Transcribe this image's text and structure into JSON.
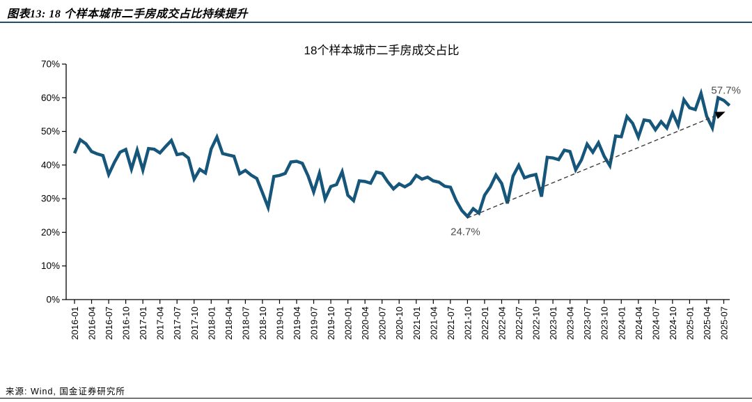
{
  "figure": {
    "title": "图表13: 18 个样本城市二手房成交占比持续提升",
    "source": "来源: Wind, 国金证券研究所",
    "caption_rule_color": "#1F4E79"
  },
  "chart_data": {
    "type": "line",
    "title": "18个样本城市二手房成交占比",
    "series_name": "二手房成交占比",
    "line_color": "#16567B",
    "trend_color": "#3A3A3A",
    "annotation_color": "#4D4D4D",
    "grid": false,
    "legend_position": "none",
    "ylim": [
      0,
      70
    ],
    "y_tick_step": 10,
    "y_ticks": [
      "70%",
      "60%",
      "50%",
      "40%",
      "30%",
      "20%",
      "10%",
      "0%"
    ],
    "x_tick_labels": [
      "2016-01",
      "2016-04",
      "2016-07",
      "2016-10",
      "2017-01",
      "2017-04",
      "2017-07",
      "2017-10",
      "2018-01",
      "2018-04",
      "2018-07",
      "2018-10",
      "2019-01",
      "2019-04",
      "2019-07",
      "2019-10",
      "2020-01",
      "2020-04",
      "2020-07",
      "2020-10",
      "2021-01",
      "2021-04",
      "2021-07",
      "2021-10",
      "2022-01",
      "2022-04",
      "2022-07",
      "2022-10",
      "2023-01",
      "2023-04",
      "2023-07",
      "2023-10",
      "2024-01",
      "2024-04",
      "2024-07",
      "2024-10",
      "2025-01",
      "2025-04",
      "2025-07"
    ],
    "x": [
      "2016-01",
      "2016-02",
      "2016-03",
      "2016-04",
      "2016-05",
      "2016-06",
      "2016-07",
      "2016-08",
      "2016-09",
      "2016-10",
      "2016-11",
      "2016-12",
      "2017-01",
      "2017-02",
      "2017-03",
      "2017-04",
      "2017-05",
      "2017-06",
      "2017-07",
      "2017-08",
      "2017-09",
      "2017-10",
      "2017-11",
      "2017-12",
      "2018-01",
      "2018-02",
      "2018-03",
      "2018-04",
      "2018-05",
      "2018-06",
      "2018-07",
      "2018-08",
      "2018-09",
      "2018-10",
      "2018-11",
      "2018-12",
      "2019-01",
      "2019-02",
      "2019-03",
      "2019-04",
      "2019-05",
      "2019-06",
      "2019-07",
      "2019-08",
      "2019-09",
      "2019-10",
      "2019-11",
      "2019-12",
      "2020-01",
      "2020-02",
      "2020-03",
      "2020-04",
      "2020-05",
      "2020-06",
      "2020-07",
      "2020-08",
      "2020-09",
      "2020-10",
      "2020-11",
      "2020-12",
      "2021-01",
      "2021-02",
      "2021-03",
      "2021-04",
      "2021-05",
      "2021-06",
      "2021-07",
      "2021-08",
      "2021-09",
      "2021-10",
      "2021-11",
      "2021-12",
      "2022-01",
      "2022-02",
      "2022-03",
      "2022-04",
      "2022-05",
      "2022-06",
      "2022-07",
      "2022-08",
      "2022-09",
      "2022-10",
      "2022-11",
      "2022-12",
      "2023-01",
      "2023-02",
      "2023-03",
      "2023-04",
      "2023-05",
      "2023-06",
      "2023-07",
      "2023-08",
      "2023-09",
      "2023-10",
      "2023-11",
      "2023-12",
      "2024-01",
      "2024-02",
      "2024-03",
      "2024-04",
      "2024-05",
      "2024-06",
      "2024-07",
      "2024-08",
      "2024-09",
      "2024-10",
      "2024-11",
      "2024-12",
      "2025-01",
      "2025-02",
      "2025-03",
      "2025-04",
      "2025-05",
      "2025-06",
      "2025-07",
      "2025-08"
    ],
    "values": [
      43.5,
      47.5,
      46.3,
      44.0,
      43.3,
      42.8,
      37.2,
      40.8,
      43.8,
      44.6,
      38.8,
      44.4,
      38.5,
      44.9,
      44.7,
      43.6,
      45.5,
      47.3,
      43.1,
      43.4,
      42.1,
      35.8,
      38.7,
      37.6,
      44.8,
      48.3,
      43.4,
      43.0,
      42.6,
      37.4,
      38.4,
      37.0,
      36.0,
      31.8,
      27.4,
      36.6,
      36.9,
      37.5,
      40.9,
      41.1,
      40.5,
      36.8,
      32.0,
      37.5,
      29.9,
      33.6,
      34.2,
      38.0,
      31.0,
      29.4,
      35.3,
      35.1,
      34.6,
      37.9,
      37.5,
      35.0,
      32.9,
      34.4,
      33.5,
      34.5,
      36.9,
      35.8,
      36.4,
      35.3,
      34.9,
      33.7,
      33.4,
      29.5,
      26.5,
      24.7,
      27.0,
      25.7,
      31.0,
      33.5,
      37.0,
      34.5,
      28.6,
      36.7,
      39.9,
      36.2,
      36.8,
      37.2,
      30.6,
      42.3,
      42.1,
      41.6,
      44.4,
      44.0,
      38.6,
      41.5,
      46.2,
      43.8,
      46.6,
      42.6,
      39.8,
      48.6,
      48.4,
      54.4,
      52.4,
      48.3,
      53.4,
      53.1,
      50.5,
      52.9,
      51.0,
      55.5,
      51.8,
      59.4,
      57.0,
      56.5,
      61.3,
      54.5,
      51.0,
      60.0,
      59.2,
      57.7
    ],
    "annotations": [
      {
        "label": "24.7%",
        "x": "2021-10",
        "value": 24.7,
        "position": "below-left"
      },
      {
        "label": "57.7%",
        "x": "2025-08",
        "value": 57.7,
        "position": "above"
      }
    ],
    "trendline": {
      "style": "dashed-arrow",
      "from_x": "2021-10",
      "to_x": "2025-08"
    }
  }
}
